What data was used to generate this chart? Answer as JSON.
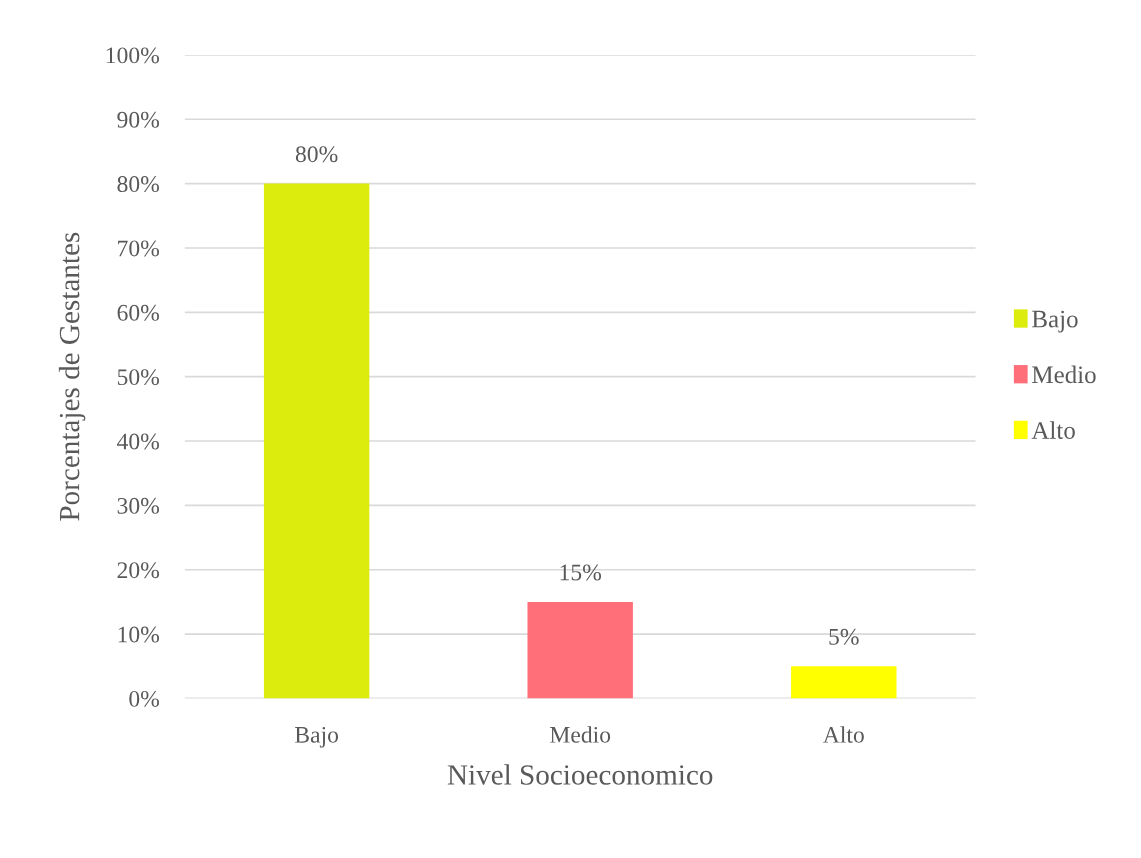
{
  "chart_data": {
    "type": "bar",
    "xlabel": "Nivel Socioeconomico",
    "ylabel": "Porcentajes de Gestantes",
    "categories": [
      "Bajo",
      "Medio",
      "Alto"
    ],
    "series": [
      {
        "name": "Bajo",
        "color": "#dcec0c",
        "values": [
          80,
          null,
          null
        ],
        "value_labels": [
          "80%",
          null,
          null
        ]
      },
      {
        "name": "Medio",
        "color": "#ff6f7a",
        "values": [
          null,
          15,
          null
        ],
        "value_labels": [
          null,
          "15%",
          null
        ]
      },
      {
        "name": "Alto",
        "color": "#ffff00",
        "values": [
          null,
          null,
          5
        ],
        "value_labels": [
          null,
          null,
          "5%"
        ]
      }
    ],
    "ylim": [
      0,
      100
    ],
    "yticks": [
      {
        "value": 0,
        "label": "0%"
      },
      {
        "value": 10,
        "label": "10%"
      },
      {
        "value": 20,
        "label": "20%"
      },
      {
        "value": 30,
        "label": "30%"
      },
      {
        "value": 40,
        "label": "40%"
      },
      {
        "value": 50,
        "label": "50%"
      },
      {
        "value": 60,
        "label": "60%"
      },
      {
        "value": 70,
        "label": "70%"
      },
      {
        "value": 80,
        "label": "80%"
      },
      {
        "value": 90,
        "label": "90%"
      },
      {
        "value": 100,
        "label": "100%"
      }
    ],
    "grid": "y",
    "legend": "right"
  }
}
